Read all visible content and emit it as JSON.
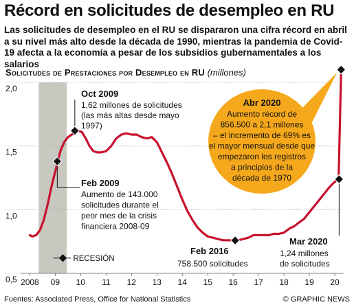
{
  "title": "Récord en solicitudes de desempleo en RU",
  "subtitle": "Las solicitudes de desempleo en el RU se dispararon una cifra récord en abril a su nivel más alto desde la década de 1990,  mientras la pandemia de Covid-19 afecta a la economía a pesar de los subsidios gubernamentales a los salarios",
  "chart_heading": "Solicitudes de Prestaciones por Desempleo en RU",
  "chart_unit": "(millones)",
  "footer": {
    "source": "Fuentes: Associated Press, Office for National Statistics",
    "credit": "© GRAPHIC NEWS"
  },
  "colors": {
    "line": "#c8102e",
    "recession": "#c8c8c0",
    "callout": "#f5a81c",
    "grid": "#999999"
  },
  "chart_data": {
    "type": "line",
    "ylim": [
      0.5,
      2.0
    ],
    "xlim": [
      2007.8,
      2020.35
    ],
    "yticks": [
      {
        "value": 2.0,
        "label": "2,0"
      },
      {
        "value": 1.5,
        "label": "1,5"
      },
      {
        "value": 1.0,
        "label": "1,0"
      },
      {
        "value": 0.5,
        "label": "0,5"
      }
    ],
    "xticks": [
      {
        "value": 2008,
        "label": "2008"
      },
      {
        "value": 2009,
        "label": "09"
      },
      {
        "value": 2010,
        "label": "10"
      },
      {
        "value": 2011,
        "label": "11"
      },
      {
        "value": 2012,
        "label": "12"
      },
      {
        "value": 2013,
        "label": "13"
      },
      {
        "value": 2014,
        "label": "14"
      },
      {
        "value": 2015,
        "label": "15"
      },
      {
        "value": 2016,
        "label": "16"
      },
      {
        "value": 2017,
        "label": "17"
      },
      {
        "value": 2018,
        "label": "18"
      },
      {
        "value": 2019,
        "label": "19"
      },
      {
        "value": 2020,
        "label": "20"
      }
    ],
    "recession": {
      "start": 2008.35,
      "end": 2009.45,
      "label": "RECESIÓN"
    },
    "series": [
      {
        "x": [
          2008.0,
          2008.1,
          2008.25,
          2008.4,
          2008.55,
          2008.7,
          2008.85,
          2009.0,
          2009.1,
          2009.2,
          2009.35,
          2009.5,
          2009.65,
          2009.8,
          2009.92,
          2010.05,
          2010.2,
          2010.35,
          2010.5,
          2010.65,
          2010.8,
          2011.0,
          2011.2,
          2011.4,
          2011.6,
          2011.8,
          2012.0,
          2012.2,
          2012.4,
          2012.6,
          2012.8,
          2013.0,
          2013.2,
          2013.4,
          2013.6,
          2013.8,
          2014.0,
          2014.2,
          2014.4,
          2014.6,
          2014.8,
          2015.0,
          2015.2,
          2015.4,
          2015.6,
          2015.8,
          2016.0,
          2016.2,
          2016.4,
          2016.6,
          2016.8,
          2017.0,
          2017.2,
          2017.4,
          2017.6,
          2017.8,
          2018.0,
          2018.2,
          2018.4,
          2018.6,
          2018.8,
          2019.0,
          2019.2,
          2019.4,
          2019.6,
          2019.8,
          2020.0,
          2020.15,
          2020.25
        ],
        "values": [
          0.8,
          0.79,
          0.8,
          0.84,
          0.92,
          1.04,
          1.18,
          1.3,
          1.38,
          1.46,
          1.53,
          1.57,
          1.59,
          1.61,
          1.62,
          1.61,
          1.56,
          1.5,
          1.46,
          1.45,
          1.45,
          1.46,
          1.5,
          1.56,
          1.59,
          1.6,
          1.59,
          1.59,
          1.57,
          1.56,
          1.57,
          1.53,
          1.45,
          1.37,
          1.28,
          1.18,
          1.08,
          0.99,
          0.92,
          0.86,
          0.82,
          0.79,
          0.78,
          0.77,
          0.76,
          0.76,
          0.7585,
          0.76,
          0.77,
          0.78,
          0.8,
          0.8,
          0.8,
          0.8,
          0.81,
          0.81,
          0.82,
          0.85,
          0.87,
          0.9,
          0.93,
          0.98,
          1.03,
          1.08,
          1.13,
          1.18,
          1.22,
          1.24,
          2.1
        ]
      }
    ],
    "annotations": [
      {
        "heading": "Oct 2009",
        "lines": [
          "1,62 millones de solicitudes",
          "(las más altas desde mayo",
          "1997)"
        ],
        "x": 2009.77,
        "y": 1.62
      },
      {
        "heading": "Feb 2009",
        "lines": [
          "Aumento de 143.000",
          "solicitudes durante el",
          "peor mes de la crisis",
          "financiera 2008-09"
        ],
        "x": 2009.08,
        "y": 1.38
      },
      {
        "heading": "Feb 2016",
        "lines": [
          "758.500 solicitudes"
        ],
        "x": 2016.08,
        "y": 0.7585
      },
      {
        "heading": "Mar 2020",
        "lines": [
          "1,24 millones",
          "de solicitudes"
        ],
        "x": 2020.17,
        "y": 1.24
      },
      {
        "heading": "Abr 2020",
        "lines": [
          "Aumento récord de",
          "856.500 a 2,1 millones",
          "– el incremento de 69% es",
          "el mayor mensual desde que",
          "empezaron los registros",
          "a principios de la",
          "década de 1970"
        ],
        "x": 2020.25,
        "y": 2.1
      }
    ]
  }
}
